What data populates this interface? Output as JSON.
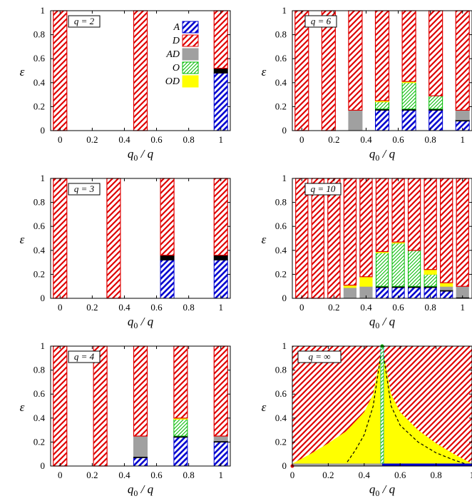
{
  "y_axis_label": "ε",
  "x_axis_label": "q0 / q",
  "x_axis_label_main": "q",
  "x_axis_label_sub": "0",
  "x_axis_label_rest": " / q",
  "colors": {
    "A": "#0000d0",
    "D": "#e00000",
    "AD": "#a0a0a0",
    "O": "#00bb00",
    "OD": "#ffff00",
    "boundary": "#000000"
  },
  "legend": [
    {
      "key": "A",
      "label": "A",
      "fill": "hatch-blue"
    },
    {
      "key": "D",
      "label": "D",
      "fill": "hatch-red"
    },
    {
      "key": "AD",
      "label": "AD",
      "fill": "gray"
    },
    {
      "key": "O",
      "label": "O",
      "fill": "hatch-green"
    },
    {
      "key": "OD",
      "label": "OD",
      "fill": "yellow"
    }
  ],
  "chart_data": [
    {
      "type": "bar",
      "panel_label": "q = 2",
      "q": 2,
      "xlim": [
        -0.05,
        1.05
      ],
      "ylim": [
        0,
        1
      ],
      "xticks": [
        "0",
        "0.2",
        "0.4",
        "0.6",
        "0.8",
        "1"
      ],
      "yticks": [
        "0",
        "0.2",
        "0.4",
        "0.6",
        "0.8",
        "1"
      ],
      "xlabel": "q0 / q",
      "ylabel": "ε",
      "legend_shown": true,
      "bars": [
        {
          "x": 0,
          "A": 0,
          "line": 0,
          "AD": 0,
          "O": 0,
          "OD": 0
        },
        {
          "x": 0.5,
          "A": 0,
          "line": 0,
          "AD": 0,
          "O": 0,
          "OD": 0
        },
        {
          "x": 1,
          "A": 0.48,
          "line": 0.04,
          "AD": 0,
          "O": 0,
          "OD": 0
        }
      ]
    },
    {
      "type": "bar",
      "panel_label": "q = 6",
      "q": 6,
      "xlim": [
        -0.05,
        1.05
      ],
      "ylim": [
        0,
        1
      ],
      "xticks": [
        "0",
        "0.2",
        "0.4",
        "0.6",
        "0.8",
        "1"
      ],
      "yticks": [
        "0",
        "0.2",
        "0.4",
        "0.6",
        "0.8",
        "1"
      ],
      "xlabel": "q0 / q",
      "ylabel": "ε",
      "bars": [
        {
          "x": 0,
          "A": 0,
          "line": 0,
          "AD": 0,
          "O": 0,
          "OD": 0
        },
        {
          "x": 0.1667,
          "A": 0,
          "line": 0,
          "AD": 0,
          "O": 0,
          "OD": 0
        },
        {
          "x": 0.3333,
          "A": 0,
          "line": 0,
          "AD": 0.17,
          "O": 0,
          "OD": 0
        },
        {
          "x": 0.5,
          "A": 0.17,
          "line": 0.01,
          "AD": 0,
          "O": 0.06,
          "OD": 0.01
        },
        {
          "x": 0.6667,
          "A": 0.17,
          "line": 0.01,
          "AD": 0,
          "O": 0.22,
          "OD": 0.01
        },
        {
          "x": 0.8333,
          "A": 0.17,
          "line": 0.01,
          "AD": 0,
          "O": 0.11,
          "OD": 0
        },
        {
          "x": 1,
          "A": 0.08,
          "line": 0.01,
          "AD": 0.08,
          "O": 0,
          "OD": 0
        }
      ]
    },
    {
      "type": "bar",
      "panel_label": "q = 3",
      "q": 3,
      "xlim": [
        -0.05,
        1.05
      ],
      "ylim": [
        0,
        1
      ],
      "xticks": [
        "0",
        "0.2",
        "0.4",
        "0.6",
        "0.8",
        "1"
      ],
      "yticks": [
        "0",
        "0.2",
        "0.4",
        "0.6",
        "0.8",
        "1"
      ],
      "xlabel": "q0 / q",
      "ylabel": "ε",
      "bars": [
        {
          "x": 0,
          "A": 0,
          "line": 0,
          "AD": 0,
          "O": 0,
          "OD": 0
        },
        {
          "x": 0.3333,
          "A": 0,
          "line": 0,
          "AD": 0,
          "O": 0,
          "OD": 0
        },
        {
          "x": 0.6667,
          "A": 0.32,
          "line": 0.04,
          "AD": 0,
          "O": 0,
          "OD": 0
        },
        {
          "x": 1,
          "A": 0.32,
          "line": 0.04,
          "AD": 0,
          "O": 0,
          "OD": 0
        }
      ]
    },
    {
      "type": "bar",
      "panel_label": "q = 10",
      "q": 10,
      "xlim": [
        -0.05,
        1.05
      ],
      "ylim": [
        0,
        1
      ],
      "xticks": [
        "0",
        "0.2",
        "0.4",
        "0.6",
        "0.8",
        "1"
      ],
      "yticks": [
        "0",
        "0.2",
        "0.4",
        "0.6",
        "0.8",
        "1"
      ],
      "xlabel": "q0 / q",
      "ylabel": "ε",
      "bars": [
        {
          "x": 0,
          "A": 0,
          "line": 0,
          "AD": 0,
          "O": 0,
          "OD": 0
        },
        {
          "x": 0.1,
          "A": 0,
          "line": 0,
          "AD": 0,
          "O": 0,
          "OD": 0
        },
        {
          "x": 0.2,
          "A": 0,
          "line": 0,
          "AD": 0,
          "O": 0,
          "OD": 0
        },
        {
          "x": 0.3,
          "A": 0,
          "line": 0,
          "AD": 0.09,
          "O": 0,
          "OD": 0.02
        },
        {
          "x": 0.4,
          "A": 0,
          "line": 0,
          "AD": 0.1,
          "O": 0,
          "OD": 0.08
        },
        {
          "x": 0.5,
          "A": 0.09,
          "line": 0.01,
          "AD": 0,
          "O": 0.28,
          "OD": 0.01
        },
        {
          "x": 0.6,
          "A": 0.09,
          "line": 0.01,
          "AD": 0,
          "O": 0.36,
          "OD": 0.01
        },
        {
          "x": 0.7,
          "A": 0.09,
          "line": 0.01,
          "AD": 0,
          "O": 0.3,
          "OD": 0
        },
        {
          "x": 0.8,
          "A": 0.09,
          "line": 0.01,
          "AD": 0,
          "O": 0.1,
          "OD": 0.04
        },
        {
          "x": 0.9,
          "A": 0.06,
          "line": 0.01,
          "AD": 0.03,
          "O": 0,
          "OD": 0.03
        },
        {
          "x": 1,
          "A": 0,
          "line": 0.01,
          "AD": 0.09,
          "O": 0,
          "OD": 0
        }
      ]
    },
    {
      "type": "bar",
      "panel_label": "q = 4",
      "q": 4,
      "xlim": [
        -0.05,
        1.05
      ],
      "ylim": [
        0,
        1
      ],
      "xticks": [
        "0",
        "0.2",
        "0.4",
        "0.6",
        "0.8",
        "1"
      ],
      "yticks": [
        "0",
        "0.2",
        "0.4",
        "0.6",
        "0.8",
        "1"
      ],
      "xlabel": "q0 / q",
      "ylabel": "ε",
      "bars": [
        {
          "x": 0,
          "A": 0,
          "line": 0,
          "AD": 0,
          "O": 0,
          "OD": 0
        },
        {
          "x": 0.25,
          "A": 0,
          "line": 0,
          "AD": 0,
          "O": 0,
          "OD": 0
        },
        {
          "x": 0.5,
          "A": 0.07,
          "line": 0.01,
          "AD": 0.17,
          "O": 0,
          "OD": 0
        },
        {
          "x": 0.75,
          "A": 0.24,
          "line": 0.01,
          "AD": 0,
          "O": 0.14,
          "OD": 0.01
        },
        {
          "x": 1,
          "A": 0.2,
          "line": 0.01,
          "AD": 0.04,
          "O": 0,
          "OD": 0
        }
      ]
    },
    {
      "type": "area",
      "panel_label": "q = ∞",
      "q": "∞",
      "xlim": [
        0,
        1
      ],
      "ylim": [
        0,
        1
      ],
      "xticks": [
        "0",
        "0.2",
        "0.4",
        "0.6",
        "0.8",
        "1"
      ],
      "yticks": [
        "0",
        "0.2",
        "0.4",
        "0.6",
        "0.8",
        "1"
      ],
      "xlabel": "q0 / q",
      "ylabel": "ε",
      "yellow_boundary_left": [
        [
          0,
          0.02
        ],
        [
          0.1,
          0.1
        ],
        [
          0.2,
          0.19
        ],
        [
          0.3,
          0.29
        ],
        [
          0.4,
          0.45
        ],
        [
          0.45,
          0.6
        ],
        [
          0.5,
          1
        ]
      ],
      "yellow_boundary_right": [
        [
          0.5,
          1
        ],
        [
          0.55,
          0.6
        ],
        [
          0.6,
          0.45
        ],
        [
          0.7,
          0.3
        ],
        [
          0.8,
          0.19
        ],
        [
          0.9,
          0.1
        ],
        [
          1,
          0.02
        ]
      ],
      "dashed_left": [
        [
          0.29,
          0
        ],
        [
          0.35,
          0.13
        ],
        [
          0.4,
          0.26
        ],
        [
          0.45,
          0.5
        ],
        [
          0.5,
          1
        ]
      ],
      "dashed_right": [
        [
          0.5,
          1
        ],
        [
          0.55,
          0.5
        ],
        [
          0.6,
          0.34
        ],
        [
          0.7,
          0.2
        ],
        [
          0.8,
          0.11
        ],
        [
          0.9,
          0.05
        ],
        [
          1,
          0
        ]
      ],
      "green_line_x": 0.5,
      "bottom_gray": [
        0,
        0.5
      ],
      "bottom_blue": [
        0.5,
        1
      ]
    }
  ]
}
